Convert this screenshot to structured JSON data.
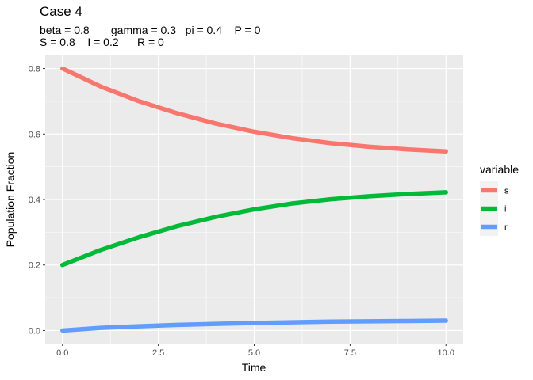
{
  "chart_data": {
    "type": "line",
    "title": "Case 4",
    "subtitle_line1": "beta = 0.8       gamma = 0.3   pi = 0.4    P = 0",
    "subtitle_line2": "S = 0.8    I = 0.2      R = 0",
    "xlabel": "Time",
    "ylabel": "Population Fraction",
    "xlim": [
      -0.45,
      10.45
    ],
    "ylim": [
      -0.04,
      0.84
    ],
    "xticks": [
      0,
      2.5,
      5,
      7.5,
      10
    ],
    "xtick_labels": [
      "0.0",
      "2.5",
      "5.0",
      "7.5",
      "10.0"
    ],
    "yticks": [
      0,
      0.2,
      0.4,
      0.6,
      0.8
    ],
    "ytick_labels": [
      "0.0",
      "0.2",
      "0.4",
      "0.6",
      "0.8"
    ],
    "grid": true,
    "legend_title": "variable",
    "legend_position": "right",
    "x": [
      0,
      1,
      2,
      3,
      4,
      5,
      6,
      7,
      8,
      9,
      10
    ],
    "series": [
      {
        "name": "s",
        "color": "#F8766D",
        "values": [
          0.8,
          0.745,
          0.7,
          0.663,
          0.632,
          0.607,
          0.587,
          0.572,
          0.561,
          0.553,
          0.547
        ]
      },
      {
        "name": "i",
        "color": "#00BA38",
        "values": [
          0.2,
          0.246,
          0.285,
          0.319,
          0.347,
          0.37,
          0.388,
          0.401,
          0.41,
          0.417,
          0.422
        ]
      },
      {
        "name": "r",
        "color": "#619CFF",
        "values": [
          0.0,
          0.008,
          0.013,
          0.017,
          0.02,
          0.023,
          0.025,
          0.027,
          0.028,
          0.029,
          0.03
        ]
      }
    ]
  }
}
